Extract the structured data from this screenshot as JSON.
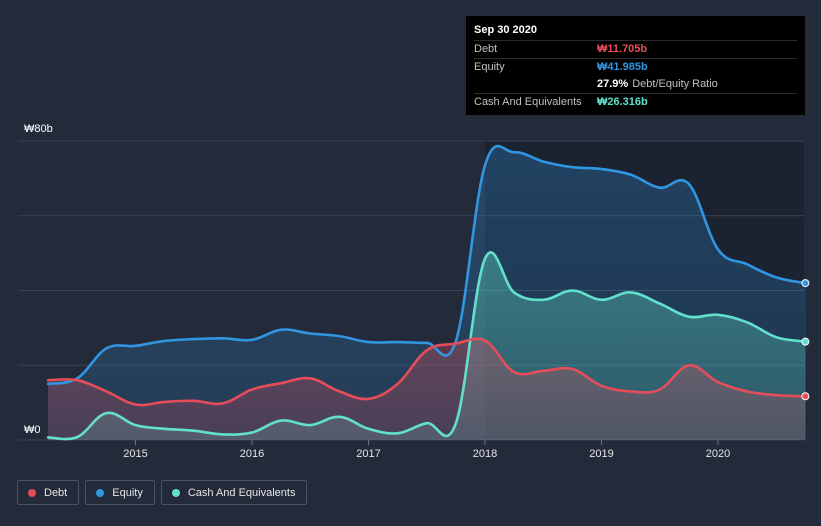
{
  "chart_data": {
    "type": "area",
    "currency_symbol": "₩",
    "y_axis": {
      "top_label": "₩80b",
      "bottom_label": "₩0",
      "ylim": [
        0,
        80
      ],
      "unit": "b"
    },
    "x_ticks": [
      "2015",
      "2016",
      "2017",
      "2018",
      "2019",
      "2020"
    ],
    "xlim": [
      2014.25,
      2020.75
    ],
    "series": [
      {
        "name": "Debt",
        "color": "#e64d5a",
        "points": [
          [
            2014.25,
            16
          ],
          [
            2014.5,
            16
          ],
          [
            2014.75,
            13
          ],
          [
            2015.0,
            9.5
          ],
          [
            2015.25,
            10.2
          ],
          [
            2015.5,
            10.5
          ],
          [
            2015.75,
            9.8
          ],
          [
            2016.0,
            13.5
          ],
          [
            2016.25,
            15.2
          ],
          [
            2016.5,
            16.5
          ],
          [
            2016.75,
            13
          ],
          [
            2017.0,
            11
          ],
          [
            2017.25,
            15
          ],
          [
            2017.5,
            24
          ],
          [
            2017.75,
            25.8
          ],
          [
            2018.0,
            26.6
          ],
          [
            2018.25,
            18.2
          ],
          [
            2018.5,
            18.5
          ],
          [
            2018.75,
            19
          ],
          [
            2019.0,
            14.5
          ],
          [
            2019.25,
            13
          ],
          [
            2019.5,
            13.5
          ],
          [
            2019.75,
            20
          ],
          [
            2020.0,
            15.5
          ],
          [
            2020.25,
            13
          ],
          [
            2020.5,
            12
          ],
          [
            2020.75,
            11.705
          ]
        ]
      },
      {
        "name": "Equity",
        "color": "#3196e2",
        "points": [
          [
            2014.25,
            15
          ],
          [
            2014.5,
            16.5
          ],
          [
            2014.75,
            24.5
          ],
          [
            2015.0,
            25.2
          ],
          [
            2015.25,
            26.5
          ],
          [
            2015.5,
            27
          ],
          [
            2015.75,
            27.2
          ],
          [
            2016.0,
            26.8
          ],
          [
            2016.25,
            29.5
          ],
          [
            2016.5,
            28.5
          ],
          [
            2016.75,
            27.8
          ],
          [
            2017.0,
            26.2
          ],
          [
            2017.25,
            26.2
          ],
          [
            2017.5,
            26
          ],
          [
            2017.75,
            26.5
          ],
          [
            2018.0,
            73.5
          ],
          [
            2018.25,
            77
          ],
          [
            2018.5,
            74.5
          ],
          [
            2018.75,
            73
          ],
          [
            2019.0,
            72.5
          ],
          [
            2019.25,
            71
          ],
          [
            2019.5,
            67.5
          ],
          [
            2019.75,
            68.5
          ],
          [
            2020.0,
            51
          ],
          [
            2020.25,
            47
          ],
          [
            2020.5,
            43.5
          ],
          [
            2020.75,
            41.985
          ]
        ]
      },
      {
        "name": "Cash And Equivalents",
        "color": "#63e0cc",
        "points": [
          [
            2014.25,
            0.7
          ],
          [
            2014.5,
            0.8
          ],
          [
            2014.75,
            7.2
          ],
          [
            2015.0,
            4
          ],
          [
            2015.25,
            3
          ],
          [
            2015.5,
            2.5
          ],
          [
            2015.75,
            1.5
          ],
          [
            2016.0,
            2
          ],
          [
            2016.25,
            5.2
          ],
          [
            2016.5,
            4
          ],
          [
            2016.75,
            6.2
          ],
          [
            2017.0,
            3
          ],
          [
            2017.25,
            1.8
          ],
          [
            2017.5,
            4.5
          ],
          [
            2017.75,
            4.5
          ],
          [
            2018.0,
            48.5
          ],
          [
            2018.25,
            39.5
          ],
          [
            2018.5,
            37.5
          ],
          [
            2018.75,
            40
          ],
          [
            2019.0,
            37.5
          ],
          [
            2019.25,
            39.5
          ],
          [
            2019.5,
            36.5
          ],
          [
            2019.75,
            33
          ],
          [
            2020.0,
            33.5
          ],
          [
            2020.25,
            31.5
          ],
          [
            2020.5,
            27.5
          ],
          [
            2020.75,
            26.316
          ]
        ]
      }
    ]
  },
  "tooltip": {
    "date": "Sep 30 2020",
    "debt_label": "Debt",
    "debt_value": "₩11.705b",
    "equity_label": "Equity",
    "equity_value": "₩41.985b",
    "ratio_value": "27.9%",
    "ratio_label": "Debt/Equity Ratio",
    "cash_label": "Cash And Equivalents",
    "cash_value": "₩26.316b"
  },
  "legend": [
    {
      "label": "Debt",
      "color": "#e64d5a"
    },
    {
      "label": "Equity",
      "color": "#3196e2"
    },
    {
      "label": "Cash And Equivalents",
      "color": "#63e0cc"
    }
  ],
  "colors": {
    "background": "#232b3a",
    "plot_highlight": "#1b2230",
    "gridline": "#3a4252",
    "debt_value": "#e64d5a",
    "equity_value": "#3196e2",
    "cash_value": "#63e0cc"
  }
}
